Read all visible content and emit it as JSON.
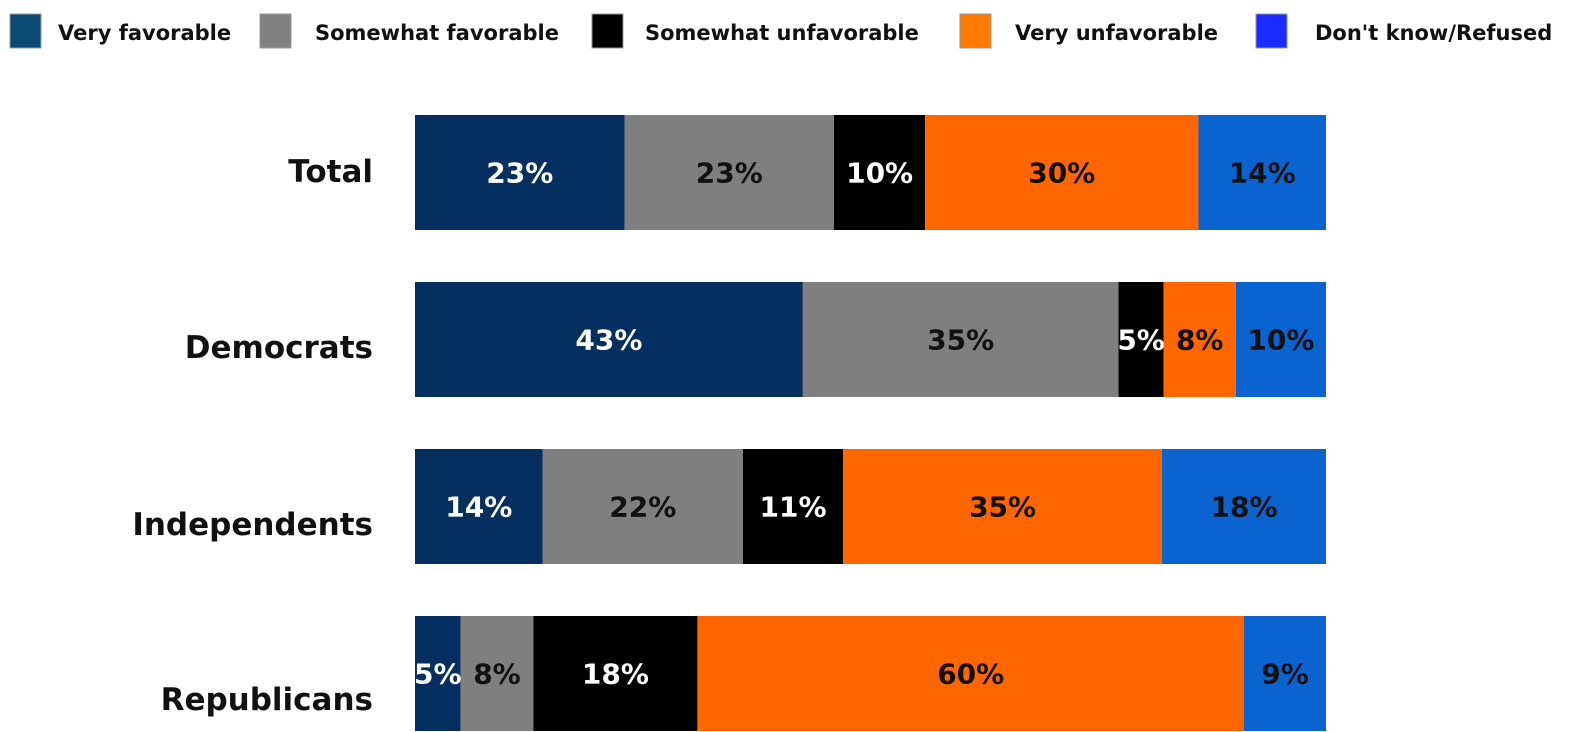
{
  "chart_data": {
    "type": "bar",
    "orientation": "horizontal",
    "stacked": true,
    "categories": [
      "Total",
      "Democrats",
      "Independents",
      "Republicans"
    ],
    "series": [
      {
        "name": "Very favorable",
        "legend_color": "#0b4a72",
        "bar_color": "#052f5e",
        "label_color": "#ffffff",
        "values": [
          23,
          43,
          14,
          5
        ]
      },
      {
        "name": "Somewhat favorable",
        "legend_color": "#808080",
        "bar_color": "#7f7f7f",
        "label_color": "#111111",
        "values": [
          23,
          35,
          22,
          8
        ]
      },
      {
        "name": "Somewhat unfavorable",
        "legend_color": "#000000",
        "bar_color": "#000000",
        "label_color": "#ffffff",
        "values": [
          10,
          5,
          11,
          18
        ]
      },
      {
        "name": "Very unfavorable",
        "legend_color": "#ff7a00",
        "bar_color": "#ff6600",
        "label_color": "#111111",
        "values": [
          30,
          8,
          35,
          60
        ]
      },
      {
        "name": "Don't know/Refused",
        "legend_color": "#1a2cff",
        "bar_color": "#0a63cf",
        "label_color": "#111111",
        "values": [
          14,
          10,
          18,
          9
        ]
      }
    ],
    "data_labels": [
      [
        "23%",
        "23%",
        "10%",
        "30%",
        "14%"
      ],
      [
        "43%",
        "35%",
        "5%",
        "8%",
        "10%"
      ],
      [
        "14%",
        "22%",
        "11%",
        "35%",
        "18%"
      ],
      [
        "5%",
        "8%",
        "18%",
        "60%",
        "9%"
      ]
    ],
    "legend_position": "top",
    "grid": false,
    "xlim": [
      0,
      100
    ]
  }
}
